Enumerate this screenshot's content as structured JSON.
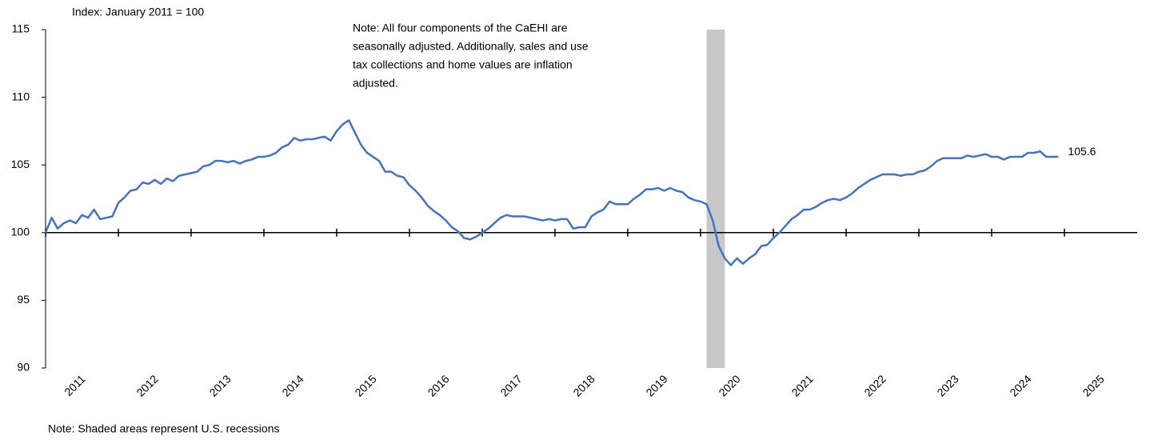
{
  "chart_data": {
    "type": "line",
    "y_label": "Index: January 2011 = 100",
    "note_lines": [
      "Note: All four components of the CaEHI are",
      "seasonally adjusted. Additionally, sales and use",
      "tax collections and home values are inflation",
      "adjusted."
    ],
    "footnote": "Note: Shaded areas represent U.S. recessions",
    "end_label": "105.6",
    "recessions": [
      {
        "start": "2020-02",
        "end": "2020-04"
      }
    ],
    "recession_color": "#c8c8c8",
    "start_year": 2011,
    "values": [
      100,
      101.1,
      100.3,
      100.7,
      100.9,
      100.7,
      101.3,
      101.1,
      101.7,
      101.0,
      101.1,
      101.2,
      102.2,
      102.6,
      103.1,
      103.2,
      103.7,
      103.6,
      103.9,
      103.6,
      104.0,
      103.8,
      104.2,
      104.3,
      104.4,
      104.5,
      104.9,
      105.0,
      105.3,
      105.3,
      105.2,
      105.3,
      105.1,
      105.3,
      105.4,
      105.6,
      105.6,
      105.7,
      105.9,
      106.3,
      106.5,
      107.0,
      106.8,
      106.9,
      106.9,
      107.0,
      107.1,
      106.8,
      107.5,
      108.0,
      108.3,
      107.4,
      106.5,
      105.9,
      105.6,
      105.3,
      104.5,
      104.5,
      104.2,
      104.1,
      103.5,
      103.1,
      102.6,
      102.0,
      101.6,
      101.3,
      100.9,
      100.4,
      100.1,
      99.6,
      99.5,
      99.7,
      100.0,
      100.3,
      100.7,
      101.1,
      101.3,
      101.2,
      101.2,
      101.2,
      101.1,
      101.0,
      100.9,
      101.0,
      100.9,
      101.0,
      101.0,
      100.3,
      100.4,
      100.4,
      101.2,
      101.5,
      101.7,
      102.3,
      102.1,
      102.1,
      102.1,
      102.5,
      102.8,
      103.2,
      103.2,
      103.3,
      103.1,
      103.3,
      103.1,
      103.0,
      102.6,
      102.4,
      102.3,
      102.1,
      100.9,
      99.0,
      98.1,
      97.6,
      98.1,
      97.7,
      98.1,
      98.4,
      99.0,
      99.1,
      99.6,
      100.0,
      100.5,
      101.0,
      101.3,
      101.7,
      101.7,
      101.9,
      102.2,
      102.4,
      102.5,
      102.4,
      102.6,
      102.9,
      103.3,
      103.6,
      103.9,
      104.1,
      104.3,
      104.3,
      104.3,
      104.2,
      104.3,
      104.3,
      104.5,
      104.6,
      104.9,
      105.3,
      105.5,
      105.5,
      105.5,
      105.5,
      105.7,
      105.6,
      105.7,
      105.8,
      105.6,
      105.6,
      105.4,
      105.6,
      105.6,
      105.6,
      105.9,
      105.9,
      106.0,
      105.6,
      105.6,
      105.6
    ],
    "color": "#4472c4",
    "xlim": [
      2011,
      2026
    ],
    "xticks": [
      {
        "value": 2011,
        "label": "2011"
      },
      {
        "value": 2012,
        "label": "2012"
      },
      {
        "value": 2013,
        "label": "2013"
      },
      {
        "value": 2014,
        "label": "2014"
      },
      {
        "value": 2015,
        "label": "2015"
      },
      {
        "value": 2016,
        "label": "2016"
      },
      {
        "value": 2017,
        "label": "2017"
      },
      {
        "value": 2018,
        "label": "2018"
      },
      {
        "value": 2019,
        "label": "2019"
      },
      {
        "value": 2020,
        "label": "2020"
      },
      {
        "value": 2021,
        "label": "2021"
      },
      {
        "value": 2022,
        "label": "2022"
      },
      {
        "value": 2023,
        "label": "2023"
      },
      {
        "value": 2024,
        "label": "2024"
      },
      {
        "value": 2025,
        "label": "2025"
      }
    ],
    "ylim": [
      90,
      115
    ],
    "yticks": [
      90,
      95,
      100,
      105,
      110,
      115
    ]
  }
}
